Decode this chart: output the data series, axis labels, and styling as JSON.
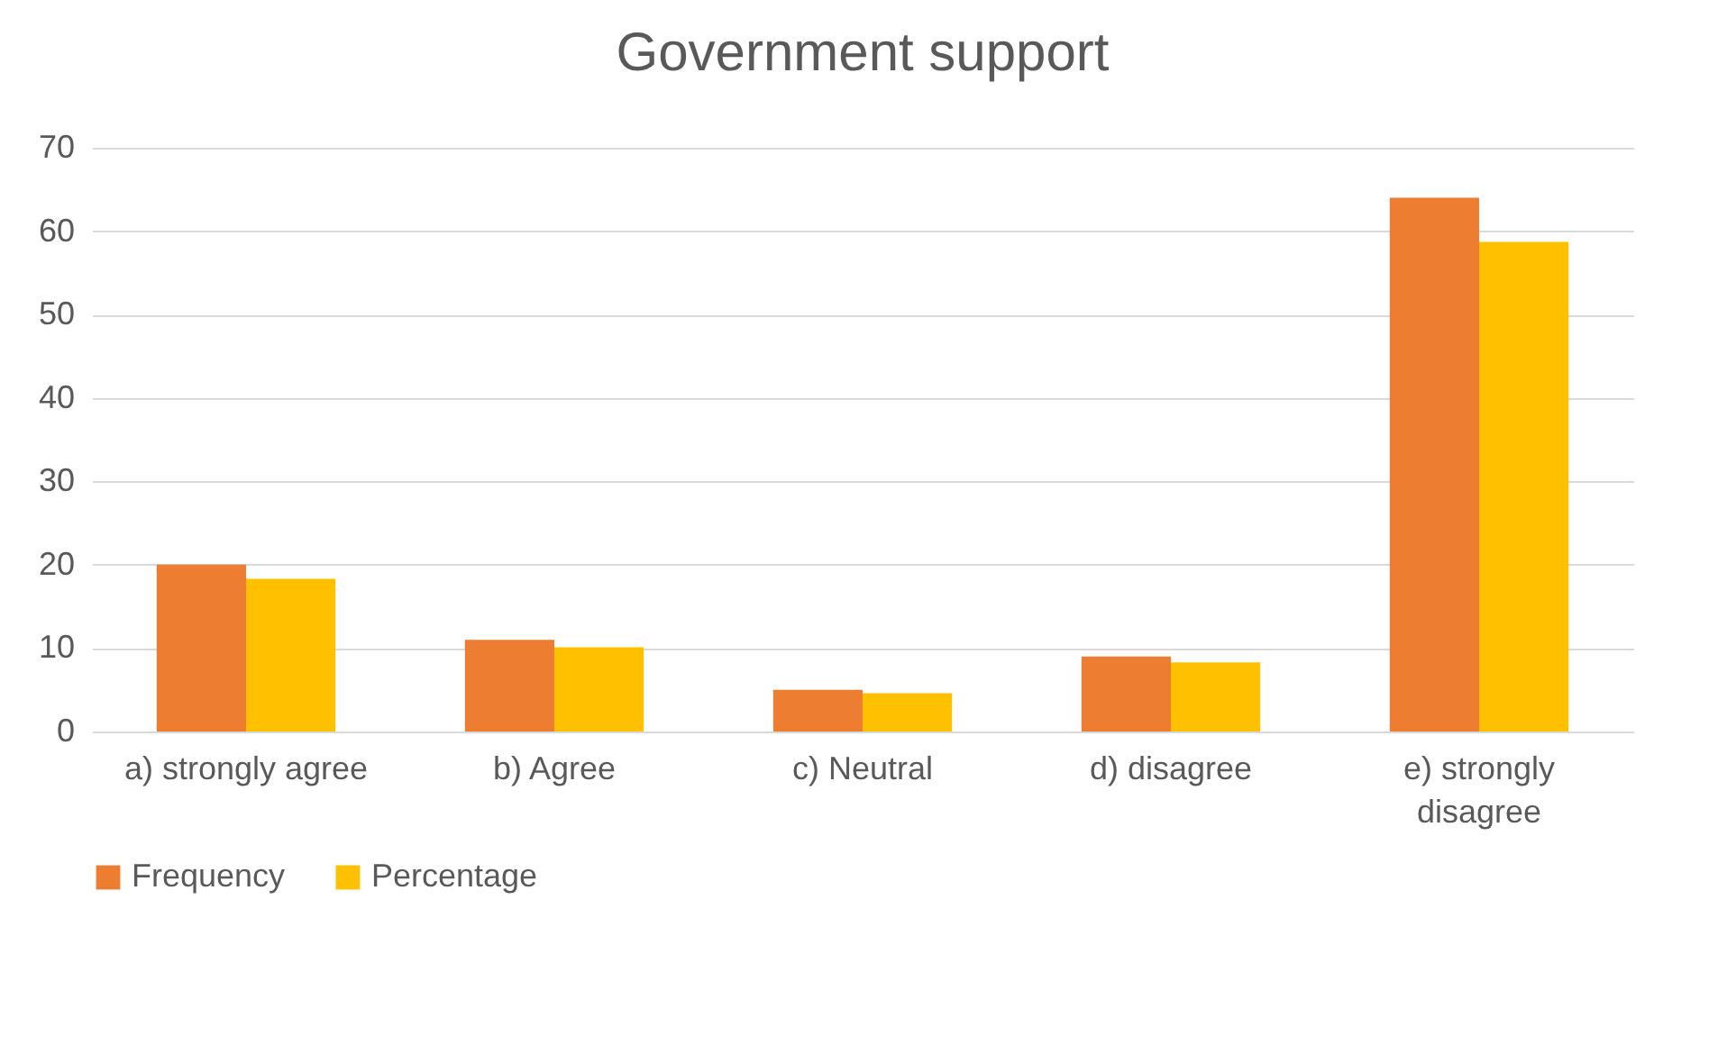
{
  "chart_data": {
    "type": "bar",
    "title": "Government support",
    "categories": [
      "a) strongly agree",
      "b) Agree",
      "c) Neutral",
      "d) disagree",
      "e) strongly\ndisagree"
    ],
    "series": [
      {
        "name": "Frequency",
        "color": "#ed7d31",
        "values": [
          20,
          11,
          5,
          9,
          64
        ]
      },
      {
        "name": "Percentage",
        "color": "#ffc000",
        "values": [
          18.3,
          10.1,
          4.6,
          8.3,
          58.7
        ]
      }
    ],
    "ylim": [
      0,
      70
    ],
    "yticks": [
      0,
      10,
      20,
      30,
      40,
      50,
      60,
      70
    ],
    "grid": "y",
    "legend": "bottom"
  }
}
